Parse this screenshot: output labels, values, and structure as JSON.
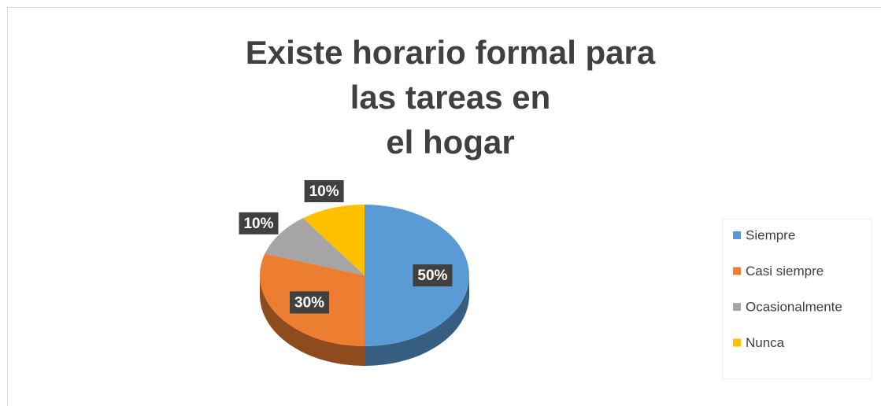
{
  "chart_data": {
    "type": "pie",
    "title": [
      "Existe horario formal para",
      "las tareas en",
      "el hogar"
    ],
    "categories": [
      "Siempre",
      "Casi siempre",
      "Ocasionalmente",
      "Nunca"
    ],
    "values": [
      50,
      30,
      10,
      10
    ],
    "value_labels": [
      "50%",
      "30%",
      "10%",
      "10%"
    ],
    "colors": [
      "#5b9bd5",
      "#ed7d31",
      "#a5a5a5",
      "#ffc000"
    ],
    "legend": "right"
  }
}
